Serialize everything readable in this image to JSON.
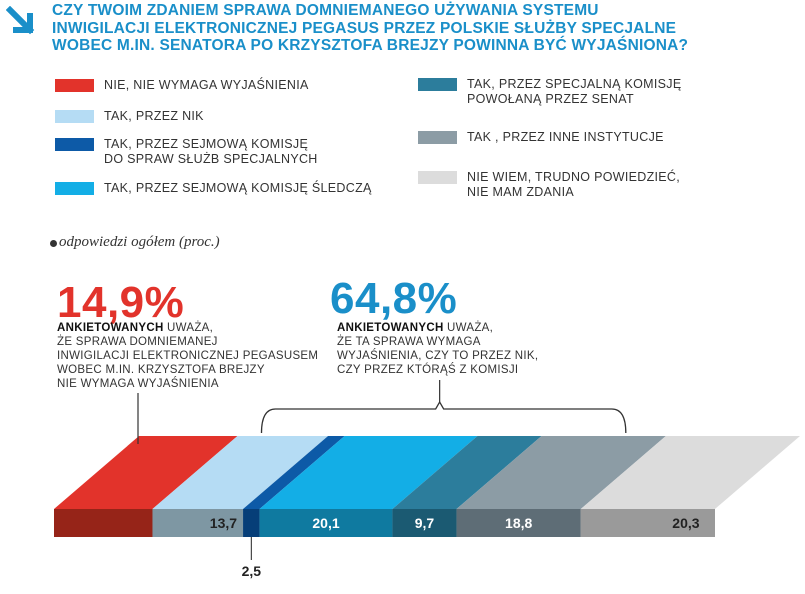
{
  "title_lines": [
    "CZY TWOIM ZDANIEM SPRAWA DOMNIEMANEGO UŻYWANIA SYSTEMU",
    "INWIGILACJI ELEKTRONICZNEJ PEGASUS PRZEZ POLSKIE SŁUŻBY SPECJALNE",
    "WOBEC M.IN. SENATORA PO KRZYSZTOFA BREJZY POWINNA BYĆ WYJAŚNIONA?"
  ],
  "subtitle": "odpowiedzi ogółem (proc.)",
  "legend": [
    {
      "lines": [
        "NIE, NIE WYMAGA WYJAŚNIENIA"
      ],
      "color": "#e2332b"
    },
    {
      "lines": [
        "TAK, PRZEZ NIK"
      ],
      "color": "#b5dcf4"
    },
    {
      "lines": [
        "TAK, PRZEZ SEJMOWĄ KOMISJĘ",
        "DO SPRAW SŁUŻB SPECJALNYCH"
      ],
      "color": "#0d5aa7"
    },
    {
      "lines": [
        "TAK, PRZEZ SEJMOWĄ KOMISJĘ ŚLEDCZĄ"
      ],
      "color": "#13aee6"
    },
    {
      "lines": [
        "TAK, PRZEZ SPECJALNĄ KOMISJĘ",
        "POWOŁANĄ PRZEZ SENAT"
      ],
      "color": "#2c7d9c"
    },
    {
      "lines": [
        "TAK , PRZEZ INNE INSTYTUCJE"
      ],
      "color": "#8c9ca5"
    },
    {
      "lines": [
        "NIE WIEM, TRUDNO POWIEDZIEĆ,",
        "NIE MAM ZDANIA"
      ],
      "color": "#dcdcdc"
    }
  ],
  "callout_left": {
    "value": "14,9%",
    "color": "#e2332b",
    "bold": "ANKIETOWANYCH",
    "first_rest": " UWAŻA,",
    "lines": [
      "ŻE SPRAWA DOMNIEMANEJ",
      "INWIGILACJI ELEKTRONICZNEJ PEGASUSEM",
      "WOBEC M.IN. KRZYSZTOFA BREJZY",
      "NIE WYMAGA WYJAŚNIENIA"
    ]
  },
  "callout_right": {
    "value": "64,8%",
    "color": "#1a8fc9",
    "bold": "ANKIETOWANYCH",
    "first_rest": " UWAŻA,",
    "lines": [
      "ŻE TA SPRAWA WYMAGA",
      "WYJAŚNIENIA, CZY TO PRZEZ NIK,",
      "CZY PRZEZ KTÓRĄŚ Z KOMISJI"
    ]
  },
  "chart_data": {
    "type": "bar",
    "orientation": "horizontal-stacked",
    "unit": "proc.",
    "categories": [
      "NIE, NIE WYMAGA WYJAŚNIENIA",
      "TAK, PRZEZ NIK",
      "TAK, PRZEZ SEJMOWĄ KOMISJĘ DO SPRAW SŁUŻB SPECJALNYCH",
      "TAK, PRZEZ SEJMOWĄ KOMISJĘ ŚLEDCZĄ",
      "TAK, PRZEZ SPECJALNĄ KOMISJĘ POWOŁANĄ PRZEZ SENAT",
      "TAK , PRZEZ INNE INSTYTUCJE",
      "NIE WIEM, TRUDNO POWIEDZIEĆ, NIE MAM ZDANIA"
    ],
    "values": [
      14.9,
      13.7,
      2.5,
      20.1,
      9.7,
      18.8,
      20.3
    ],
    "data_labels": [
      "",
      "13,7",
      "2,5",
      "20,1",
      "9,7",
      "18,8",
      "20,3"
    ],
    "top_colors": [
      "#e2332b",
      "#b5dcf4",
      "#0d5aa7",
      "#13aee6",
      "#2c7d9c",
      "#8c9ca5",
      "#dcdcdc"
    ],
    "bottom_colors": [
      "#962418",
      "#7e97a3",
      "#063e78",
      "#0f7aa0",
      "#1b5a72",
      "#5e6d76",
      "#9a9a9a"
    ],
    "grouped_total": {
      "value": 64.8,
      "from_index": 1,
      "to_index": 5
    }
  }
}
